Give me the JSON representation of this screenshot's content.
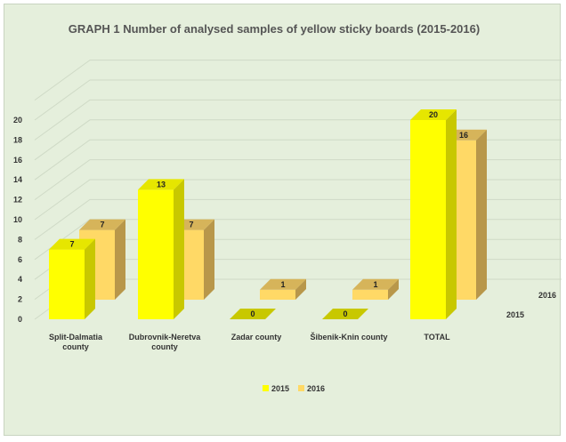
{
  "chart_data": {
    "type": "bar",
    "title": "GRAPH 1 Number of analysed samples of yellow sticky boards (2015-2016)",
    "xlabel": "",
    "ylabel": "",
    "ylim": [
      0,
      20
    ],
    "yticks": [
      "0",
      "2",
      "4",
      "6",
      "8",
      "10",
      "12",
      "14",
      "16",
      "18",
      "20"
    ],
    "categories": [
      [
        "Split-Dalmatia",
        "county"
      ],
      [
        "Dubrovnik-Neretva",
        "county"
      ],
      [
        "Zadar county"
      ],
      [
        "Šibenik-Knin county"
      ],
      [
        "TOTAL"
      ]
    ],
    "series": [
      {
        "name": "2015",
        "values": [
          7,
          13,
          0,
          0,
          20
        ],
        "color": "#ffff00",
        "side": "#c8c800",
        "top": "#e6e600"
      },
      {
        "name": "2016",
        "values": [
          7,
          7,
          1,
          1,
          16
        ],
        "color": "#ffd966",
        "side": "#b8974a",
        "top": "#d6b45a"
      }
    ],
    "depth_labels": [
      "2016",
      "2015"
    ],
    "legend_position": "bottom",
    "grid": true,
    "three_d": true
  }
}
